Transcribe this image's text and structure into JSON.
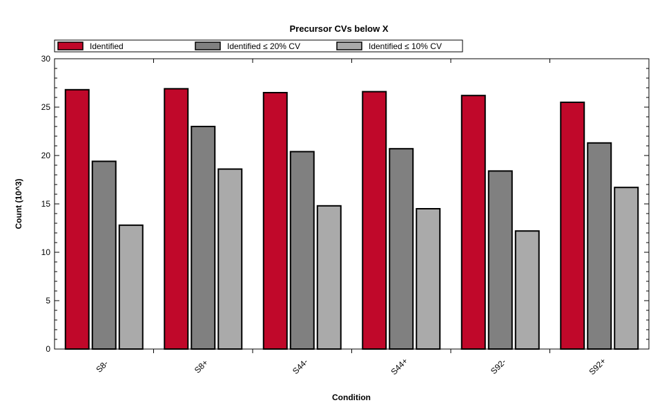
{
  "chart_data": {
    "type": "bar",
    "title": "Precursor CVs below X",
    "xlabel": "Condition",
    "ylabel": "Count (10^3)",
    "ylim": [
      0,
      30
    ],
    "yticks": [
      0,
      5,
      10,
      15,
      20,
      25,
      30
    ],
    "grid": false,
    "legend_position": "top",
    "categories": [
      "S8-",
      "S8+",
      "S44-",
      "S44+",
      "S92-",
      "S92+"
    ],
    "series": [
      {
        "name": "Identified",
        "color": "#c0082a",
        "values": [
          26.8,
          26.9,
          26.5,
          26.6,
          26.2,
          25.5
        ]
      },
      {
        "name": "Identified ≤ 20% CV",
        "color": "#808080",
        "values": [
          19.4,
          23.0,
          20.4,
          20.7,
          18.4,
          21.3
        ]
      },
      {
        "name": "Identified ≤ 10% CV",
        "color": "#aaaaaa",
        "values": [
          12.8,
          18.6,
          14.8,
          14.5,
          12.2,
          16.7
        ]
      }
    ]
  }
}
